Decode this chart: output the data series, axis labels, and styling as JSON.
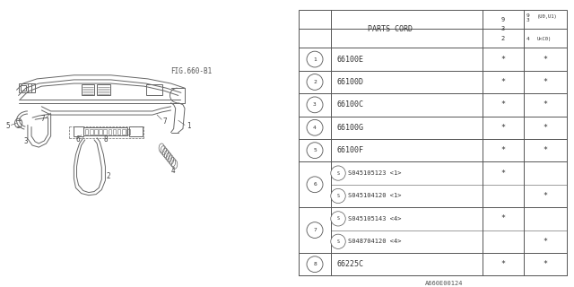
{
  "bg_color": "#ffffff",
  "fig_label": "FIG.660-B1",
  "catalog_code": "A660E00124",
  "lc": "#666666",
  "table": {
    "header": {
      "col1": "PARTS CORD",
      "col2_top": "9\n3\n2",
      "col3_top": "9\n3",
      "col3_top2": "(U0,U1)",
      "col2_bot": "",
      "col3_bot": "4",
      "col3_bot2": "U<C0)"
    },
    "rows": [
      {
        "num": "1",
        "part": "66100E",
        "c2": "*",
        "c3": "*",
        "double": false,
        "subs": []
      },
      {
        "num": "2",
        "part": "66100D",
        "c2": "*",
        "c3": "*",
        "double": false,
        "subs": []
      },
      {
        "num": "3",
        "part": "66100C",
        "c2": "*",
        "c3": "*",
        "double": false,
        "subs": []
      },
      {
        "num": "4",
        "part": "66100G",
        "c2": "*",
        "c3": "*",
        "double": false,
        "subs": []
      },
      {
        "num": "5",
        "part": "66100F",
        "c2": "*",
        "c3": "*",
        "double": false,
        "subs": []
      },
      {
        "num": "6",
        "part": "",
        "c2": "",
        "c3": "",
        "double": true,
        "subs": [
          {
            "part": "S045105123 <1>",
            "c2": "*",
            "c3": ""
          },
          {
            "part": "S045104120 <1>",
            "c2": "",
            "c3": "*"
          }
        ]
      },
      {
        "num": "7",
        "part": "",
        "c2": "",
        "c3": "",
        "double": true,
        "subs": [
          {
            "part": "S045105143 <4>",
            "c2": "*",
            "c3": ""
          },
          {
            "part": "S048704120 <4>",
            "c2": "",
            "c3": "*"
          }
        ]
      },
      {
        "num": "8",
        "part": "66225C",
        "c2": "*",
        "c3": "*",
        "double": false,
        "subs": []
      }
    ]
  }
}
